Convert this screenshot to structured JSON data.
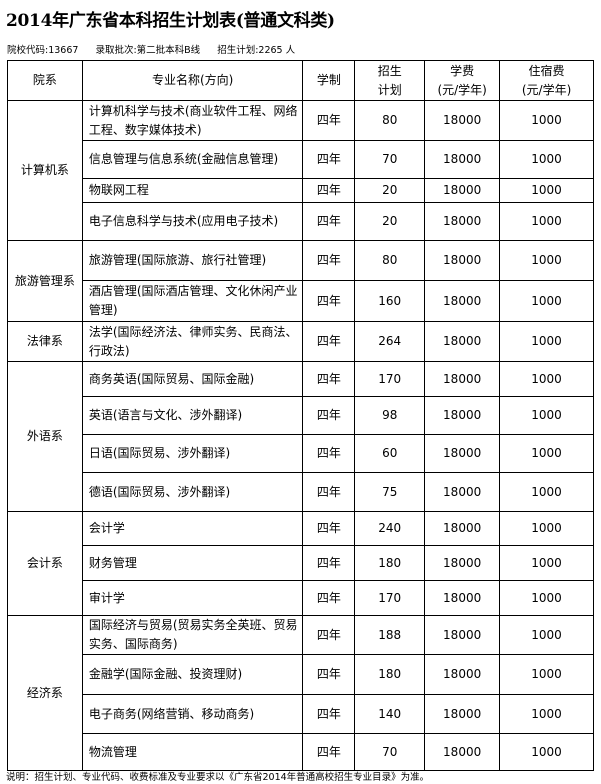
{
  "title": "2014年广东省本科招生计划表(普通文科类)",
  "meta": {
    "code": "院校代码:13667",
    "batch": "录取批次:第二批本科B线",
    "plan": "招生计划:2265 人"
  },
  "headers": [
    "院系",
    "专业名称(方向)",
    "学制",
    "招生\n计划",
    "学费\n(元/学年)",
    "住宿费\n(元/学年)"
  ],
  "groups": [
    {
      "dept": "计算机系",
      "rows": [
        {
          "major": "计算机科学与技术(商业软件工程、网络工程、数字媒体技术)",
          "years": "四年",
          "plan": "80",
          "fee": "18000",
          "dorm": "1000"
        },
        {
          "major": "信息管理与信息系统(金融信息管理)",
          "years": "四年",
          "plan": "70",
          "fee": "18000",
          "dorm": "1000"
        },
        {
          "major": "物联网工程",
          "years": "四年",
          "plan": "20",
          "fee": "18000",
          "dorm": "1000"
        },
        {
          "major": "电子信息科学与技术(应用电子技术)",
          "years": "四年",
          "plan": "20",
          "fee": "18000",
          "dorm": "1000"
        }
      ]
    },
    {
      "dept": "旅游管理系",
      "rows": [
        {
          "major": "旅游管理(国际旅游、旅行社管理)",
          "years": "四年",
          "plan": "80",
          "fee": "18000",
          "dorm": "1000"
        },
        {
          "major": "酒店管理(国际酒店管理、文化休闲产业管理)",
          "years": "四年",
          "plan": "160",
          "fee": "18000",
          "dorm": "1000"
        }
      ]
    },
    {
      "dept": "法律系",
      "rows": [
        {
          "major": "法学(国际经济法、律师实务、民商法、行政法)",
          "years": "四年",
          "plan": "264",
          "fee": "18000",
          "dorm": "1000"
        }
      ]
    },
    {
      "dept": "外语系",
      "rows": [
        {
          "major": "商务英语(国际贸易、国际金融)",
          "years": "四年",
          "plan": "170",
          "fee": "18000",
          "dorm": "1000"
        },
        {
          "major": "英语(语言与文化、涉外翻译)",
          "years": "四年",
          "plan": "98",
          "fee": "18000",
          "dorm": "1000"
        },
        {
          "major": "日语(国际贸易、涉外翻译)",
          "years": "四年",
          "plan": "60",
          "fee": "18000",
          "dorm": "1000"
        },
        {
          "major": "德语(国际贸易、涉外翻译)",
          "years": "四年",
          "plan": "75",
          "fee": "18000",
          "dorm": "1000"
        }
      ]
    },
    {
      "dept": "会计系",
      "rows": [
        {
          "major": "会计学",
          "years": "四年",
          "plan": "240",
          "fee": "18000",
          "dorm": "1000"
        },
        {
          "major": "财务管理",
          "years": "四年",
          "plan": "180",
          "fee": "18000",
          "dorm": "1000"
        },
        {
          "major": "审计学",
          "years": "四年",
          "plan": "170",
          "fee": "18000",
          "dorm": "1000"
        }
      ]
    },
    {
      "dept": "经济系",
      "rows": [
        {
          "major": "国际经济与贸易(贸易实务全英班、贸易实务、国际商务)",
          "years": "四年",
          "plan": "188",
          "fee": "18000",
          "dorm": "1000"
        },
        {
          "major": "金融学(国际金融、投资理财)",
          "years": "四年",
          "plan": "180",
          "fee": "18000",
          "dorm": "1000"
        },
        {
          "major": "电子商务(网络营销、移动商务)",
          "years": "四年",
          "plan": "140",
          "fee": "18000",
          "dorm": "1000"
        },
        {
          "major": "物流管理",
          "years": "四年",
          "plan": "70",
          "fee": "18000",
          "dorm": "1000"
        }
      ]
    }
  ],
  "note": "说明：招生计划、专业代码、收费标准及专业要求以《广东省2014年普通高校招生专业目录》为准。"
}
